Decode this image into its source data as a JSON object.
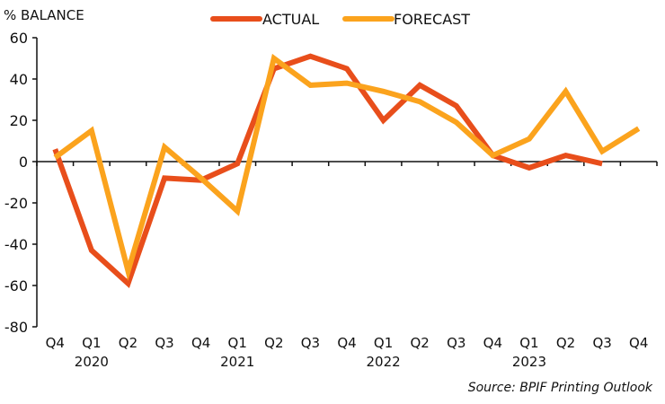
{
  "chart_data": {
    "type": "line",
    "title": "",
    "ylabel": "% BALANCE",
    "xlabel": "",
    "ylim": [
      -80,
      60
    ],
    "yticks": [
      60,
      40,
      20,
      0,
      -20,
      -40,
      -60,
      -80
    ],
    "grid": false,
    "legend_position": "top-center",
    "categories": [
      "Q4",
      "Q1",
      "Q2",
      "Q3",
      "Q4",
      "Q1",
      "Q2",
      "Q3",
      "Q4",
      "Q1",
      "Q2",
      "Q3",
      "Q4",
      "Q1",
      "Q2",
      "Q3",
      "Q4"
    ],
    "year_labels": [
      {
        "label": "2020",
        "category_index": 1
      },
      {
        "label": "2021",
        "category_index": 5
      },
      {
        "label": "2022",
        "category_index": 9
      },
      {
        "label": "2023",
        "category_index": 13
      }
    ],
    "series": [
      {
        "name": "ACTUAL",
        "color": "#e84e1b",
        "values": [
          6,
          -43,
          -59,
          -8,
          -9,
          -1,
          45,
          51,
          45,
          20,
          37,
          27,
          3,
          -3,
          3,
          -1,
          null
        ]
      },
      {
        "name": "FORECAST",
        "color": "#fba31d",
        "values": [
          2,
          15,
          -53,
          7,
          -8,
          -24,
          50,
          37,
          38,
          34,
          29,
          19,
          3,
          11,
          34,
          5,
          16
        ]
      }
    ],
    "source": "Source: BPIF Printing Outlook"
  }
}
